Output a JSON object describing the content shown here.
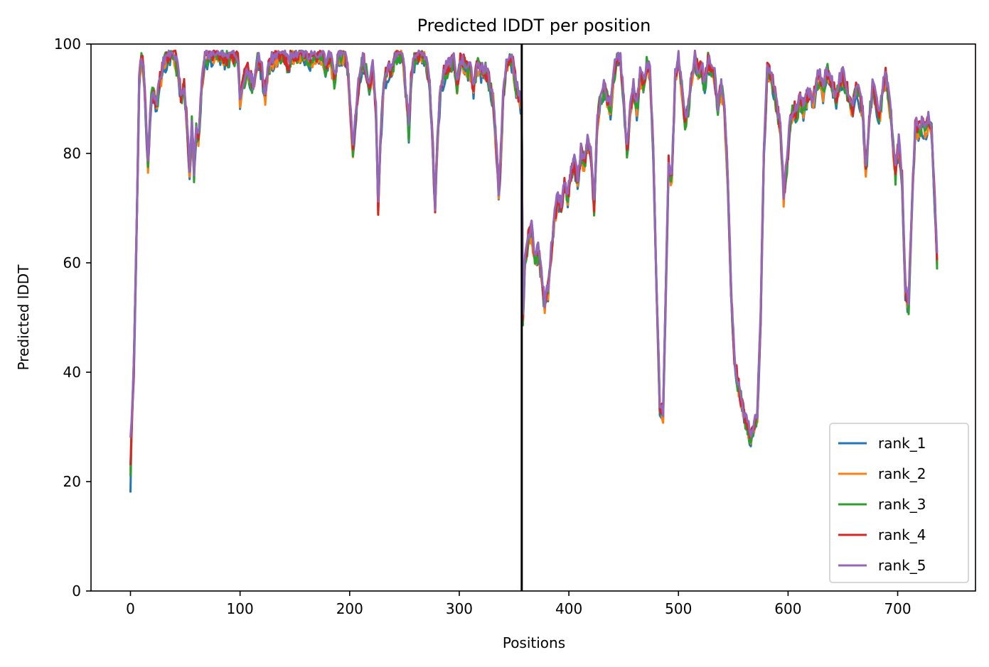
{
  "chart_data": {
    "type": "line",
    "title": "Predicted lDDT per position",
    "xlabel": "Positions",
    "ylabel": "Predicted lDDT",
    "xlim": [
      -36,
      771
    ],
    "ylim": [
      0,
      100
    ],
    "xticks": [
      0,
      100,
      200,
      300,
      400,
      500,
      600,
      700
    ],
    "yticks": [
      0,
      20,
      40,
      60,
      80,
      100
    ],
    "grid": false,
    "legend_position": "lower-right",
    "chain_break_at": 357,
    "keypoints": [
      [
        0,
        24
      ],
      [
        3,
        40
      ],
      [
        6,
        70
      ],
      [
        8,
        93
      ],
      [
        10,
        97
      ],
      [
        12,
        95
      ],
      [
        14,
        86
      ],
      [
        16,
        78
      ],
      [
        19,
        90
      ],
      [
        21,
        91
      ],
      [
        24,
        89
      ],
      [
        27,
        93
      ],
      [
        30,
        96
      ],
      [
        35,
        98
      ],
      [
        40,
        98
      ],
      [
        43,
        95
      ],
      [
        46,
        90
      ],
      [
        49,
        92
      ],
      [
        52,
        84
      ],
      [
        54,
        76
      ],
      [
        56,
        85
      ],
      [
        58,
        76
      ],
      [
        60,
        84
      ],
      [
        62,
        82
      ],
      [
        65,
        93
      ],
      [
        68,
        97
      ],
      [
        75,
        98
      ],
      [
        82,
        98
      ],
      [
        87,
        97
      ],
      [
        92,
        98
      ],
      [
        98,
        97
      ],
      [
        100,
        90
      ],
      [
        103,
        93
      ],
      [
        106,
        95
      ],
      [
        109,
        94
      ],
      [
        112,
        92
      ],
      [
        116,
        97
      ],
      [
        120,
        95
      ],
      [
        123,
        90
      ],
      [
        126,
        96
      ],
      [
        135,
        98
      ],
      [
        140,
        98
      ],
      [
        144,
        96
      ],
      [
        148,
        98
      ],
      [
        155,
        98
      ],
      [
        160,
        98
      ],
      [
        164,
        97
      ],
      [
        168,
        98
      ],
      [
        175,
        98
      ],
      [
        178,
        96
      ],
      [
        182,
        98
      ],
      [
        186,
        93
      ],
      [
        190,
        98
      ],
      [
        195,
        98
      ],
      [
        198,
        96
      ],
      [
        200,
        90
      ],
      [
        203,
        80
      ],
      [
        206,
        88
      ],
      [
        209,
        94
      ],
      [
        212,
        97
      ],
      [
        215,
        95
      ],
      [
        218,
        92
      ],
      [
        221,
        96
      ],
      [
        224,
        88
      ],
      [
        226,
        70
      ],
      [
        228,
        82
      ],
      [
        231,
        92
      ],
      [
        234,
        95
      ],
      [
        238,
        95
      ],
      [
        242,
        98
      ],
      [
        248,
        98
      ],
      [
        252,
        90
      ],
      [
        254,
        84
      ],
      [
        256,
        93
      ],
      [
        260,
        98
      ],
      [
        266,
        98
      ],
      [
        270,
        97
      ],
      [
        273,
        93
      ],
      [
        276,
        80
      ],
      [
        278,
        70
      ],
      [
        280,
        82
      ],
      [
        283,
        92
      ],
      [
        287,
        95
      ],
      [
        291,
        96
      ],
      [
        295,
        97
      ],
      [
        298,
        92
      ],
      [
        301,
        97
      ],
      [
        305,
        96
      ],
      [
        310,
        95
      ],
      [
        313,
        92
      ],
      [
        316,
        96
      ],
      [
        320,
        95
      ],
      [
        324,
        95
      ],
      [
        327,
        93
      ],
      [
        331,
        90
      ],
      [
        334,
        80
      ],
      [
        336,
        72
      ],
      [
        338,
        80
      ],
      [
        340,
        90
      ],
      [
        343,
        96
      ],
      [
        346,
        98
      ],
      [
        349,
        96
      ],
      [
        352,
        92
      ],
      [
        355,
        90
      ],
      [
        357,
        88
      ],
      [
        358,
        50
      ],
      [
        360,
        60
      ],
      [
        363,
        64
      ],
      [
        366,
        66
      ],
      [
        369,
        60
      ],
      [
        372,
        62
      ],
      [
        375,
        58
      ],
      [
        378,
        52
      ],
      [
        381,
        55
      ],
      [
        384,
        62
      ],
      [
        387,
        68
      ],
      [
        390,
        72
      ],
      [
        393,
        70
      ],
      [
        396,
        74
      ],
      [
        399,
        72
      ],
      [
        402,
        76
      ],
      [
        405,
        78
      ],
      [
        408,
        75
      ],
      [
        411,
        80
      ],
      [
        414,
        78
      ],
      [
        417,
        82
      ],
      [
        420,
        80
      ],
      [
        423,
        70
      ],
      [
        426,
        86
      ],
      [
        429,
        90
      ],
      [
        432,
        92
      ],
      [
        435,
        90
      ],
      [
        438,
        88
      ],
      [
        441,
        94
      ],
      [
        444,
        98
      ],
      [
        447,
        97
      ],
      [
        450,
        90
      ],
      [
        453,
        80
      ],
      [
        456,
        88
      ],
      [
        459,
        92
      ],
      [
        462,
        88
      ],
      [
        465,
        94
      ],
      [
        468,
        93
      ],
      [
        471,
        96
      ],
      [
        474,
        95
      ],
      [
        477,
        80
      ],
      [
        480,
        55
      ],
      [
        483,
        34
      ],
      [
        486,
        32
      ],
      [
        489,
        60
      ],
      [
        491,
        78
      ],
      [
        494,
        75
      ],
      [
        497,
        94
      ],
      [
        500,
        97
      ],
      [
        503,
        92
      ],
      [
        506,
        86
      ],
      [
        509,
        88
      ],
      [
        512,
        94
      ],
      [
        515,
        97
      ],
      [
        518,
        95
      ],
      [
        521,
        96
      ],
      [
        524,
        92
      ],
      [
        527,
        97
      ],
      [
        530,
        95
      ],
      [
        533,
        94
      ],
      [
        536,
        88
      ],
      [
        539,
        92
      ],
      [
        542,
        88
      ],
      [
        545,
        75
      ],
      [
        548,
        55
      ],
      [
        551,
        42
      ],
      [
        554,
        38
      ],
      [
        557,
        35
      ],
      [
        560,
        32
      ],
      [
        563,
        30
      ],
      [
        566,
        28
      ],
      [
        569,
        30
      ],
      [
        572,
        32
      ],
      [
        575,
        50
      ],
      [
        578,
        80
      ],
      [
        581,
        95
      ],
      [
        584,
        94
      ],
      [
        587,
        92
      ],
      [
        590,
        88
      ],
      [
        593,
        85
      ],
      [
        596,
        72
      ],
      [
        599,
        78
      ],
      [
        602,
        86
      ],
      [
        605,
        88
      ],
      [
        608,
        87
      ],
      [
        611,
        90
      ],
      [
        614,
        88
      ],
      [
        617,
        90
      ],
      [
        620,
        91
      ],
      [
        623,
        89
      ],
      [
        626,
        93
      ],
      [
        629,
        94
      ],
      [
        632,
        91
      ],
      [
        635,
        95
      ],
      [
        638,
        94
      ],
      [
        641,
        92
      ],
      [
        644,
        90
      ],
      [
        647,
        93
      ],
      [
        650,
        94
      ],
      [
        653,
        92
      ],
      [
        656,
        90
      ],
      [
        659,
        88
      ],
      [
        662,
        92
      ],
      [
        665,
        90
      ],
      [
        668,
        88
      ],
      [
        671,
        76
      ],
      [
        674,
        86
      ],
      [
        677,
        92
      ],
      [
        680,
        90
      ],
      [
        683,
        86
      ],
      [
        686,
        91
      ],
      [
        689,
        94
      ],
      [
        692,
        90
      ],
      [
        695,
        84
      ],
      [
        698,
        76
      ],
      [
        701,
        82
      ],
      [
        704,
        75
      ],
      [
        707,
        55
      ],
      [
        710,
        52
      ],
      [
        713,
        70
      ],
      [
        716,
        85
      ],
      [
        719,
        84
      ],
      [
        722,
        85
      ],
      [
        725,
        84
      ],
      [
        728,
        86
      ],
      [
        731,
        84
      ],
      [
        734,
        70
      ],
      [
        736,
        60
      ]
    ],
    "series": [
      {
        "name": "rank_1",
        "color": "#1f77b4",
        "start": 18,
        "seed": 11,
        "noise": 1.4
      },
      {
        "name": "rank_2",
        "color": "#ff7f0e",
        "start": 22,
        "seed": 23,
        "noise": 1.5
      },
      {
        "name": "rank_3",
        "color": "#2ca02c",
        "start": 21,
        "seed": 37,
        "noise": 1.8
      },
      {
        "name": "rank_4",
        "color": "#d62728",
        "start": 23,
        "seed": 51,
        "noise": 1.6
      },
      {
        "name": "rank_5",
        "color": "#9467bd",
        "start": 28,
        "seed": 67,
        "noise": 1.2
      }
    ]
  }
}
